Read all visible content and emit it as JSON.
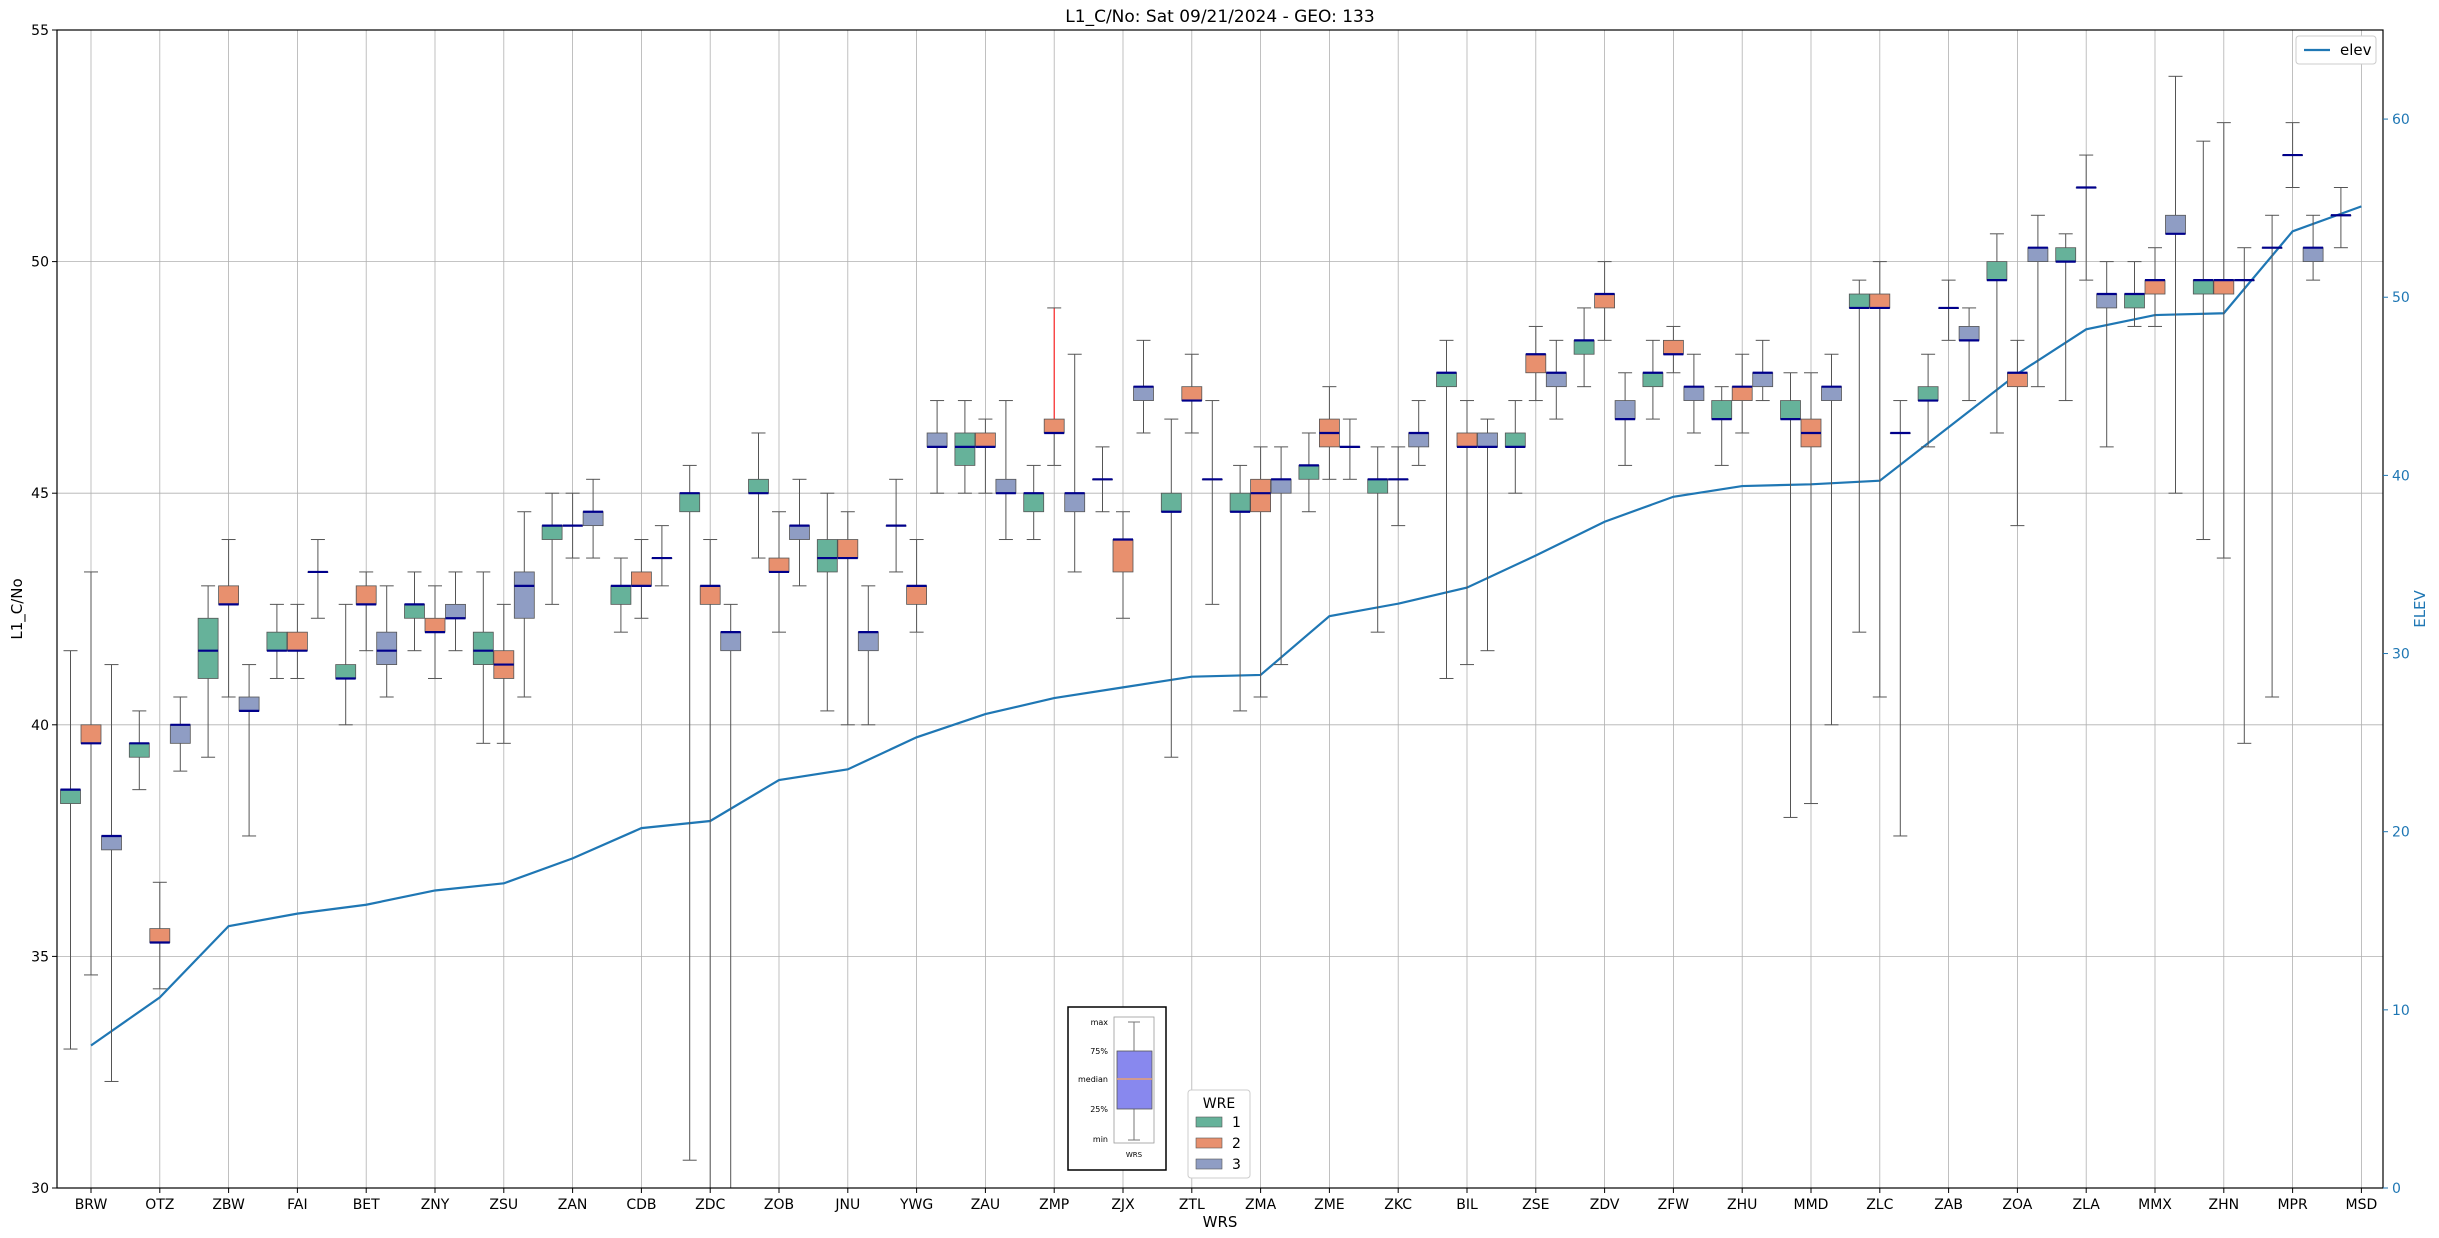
{
  "chart_data": {
    "type": "boxplot",
    "title": "L1_C/No: Sat 09/21/2024 - GEO: 133",
    "xlabel": "WRS",
    "ylabel": "L1_C/No",
    "y2label": "ELEV",
    "ylim": [
      30,
      55
    ],
    "y2lim": [
      0,
      65
    ],
    "yticks": [
      30,
      35,
      40,
      45,
      50,
      55
    ],
    "y2ticks": [
      0,
      10,
      20,
      30,
      40,
      50,
      60
    ],
    "grid": true,
    "categories": [
      "BRW",
      "OTZ",
      "ZBW",
      "FAI",
      "BET",
      "ZNY",
      "ZSU",
      "ZAN",
      "CDB",
      "ZDC",
      "ZOB",
      "JNU",
      "YWG",
      "ZAU",
      "ZMP",
      "ZJX",
      "ZTL",
      "ZMA",
      "ZME",
      "ZKC",
      "BIL",
      "ZSE",
      "ZDV",
      "ZFW",
      "ZHU",
      "MMD",
      "ZLC",
      "ZAB",
      "ZOA",
      "ZLA",
      "MMX",
      "ZHN",
      "MPR",
      "MSD"
    ],
    "wre_colors": {
      "1": "#66b29a",
      "2": "#e8906e",
      "3": "#8f9dc4"
    },
    "elev": {
      "name": "elev",
      "color": "#1f77b4",
      "values": [
        8,
        10.7,
        14.7,
        15.4,
        15.9,
        16.7,
        17.1,
        18.5,
        20.2,
        20.6,
        22.9,
        23.5,
        25.3,
        26.6,
        27.5,
        28.1,
        28.7,
        28.8,
        32.1,
        32.8,
        33.7,
        35.5,
        37.4,
        38.8,
        39.4,
        39.5,
        39.7,
        42.7,
        45.7,
        48.2,
        49,
        49.1,
        53.7,
        55.1
      ]
    },
    "boxes": [
      {
        "wrs": "BRW",
        "wre": 1,
        "min": 33,
        "q1": 38.3,
        "median": 38.6,
        "q3": 38.6,
        "max": 41.6
      },
      {
        "wrs": "BRW",
        "wre": 2,
        "min": 34.6,
        "q1": 39.6,
        "median": 39.6,
        "q3": 40,
        "max": 43.3
      },
      {
        "wrs": "BRW",
        "wre": 3,
        "min": 32.3,
        "q1": 37.3,
        "median": 37.6,
        "q3": 37.6,
        "max": 41.3
      },
      {
        "wrs": "OTZ",
        "wre": 1,
        "min": 38.6,
        "q1": 39.3,
        "median": 39.6,
        "q3": 39.6,
        "max": 40.3
      },
      {
        "wrs": "OTZ",
        "wre": 2,
        "min": 34.3,
        "q1": 35.3,
        "median": 35.3,
        "q3": 35.6,
        "max": 36.6
      },
      {
        "wrs": "OTZ",
        "wre": 3,
        "min": 39,
        "q1": 39.6,
        "median": 40,
        "q3": 40,
        "max": 40.6
      },
      {
        "wrs": "ZBW",
        "wre": 1,
        "min": 39.3,
        "q1": 41,
        "median": 41.6,
        "q3": 42.3,
        "max": 43
      },
      {
        "wrs": "ZBW",
        "wre": 2,
        "min": 40.6,
        "q1": 42.6,
        "median": 42.6,
        "q3": 43,
        "max": 44
      },
      {
        "wrs": "ZBW",
        "wre": 3,
        "min": 37.6,
        "q1": 40.3,
        "median": 40.3,
        "q3": 40.6,
        "max": 41.3
      },
      {
        "wrs": "FAI",
        "wre": 1,
        "min": 41,
        "q1": 41.6,
        "median": 41.6,
        "q3": 42,
        "max": 42.6
      },
      {
        "wrs": "FAI",
        "wre": 2,
        "min": 41,
        "q1": 41.6,
        "median": 41.6,
        "q3": 42,
        "max": 42.6
      },
      {
        "wrs": "FAI",
        "wre": 3,
        "min": 42.3,
        "q1": 43.3,
        "median": 43.3,
        "q3": 43.3,
        "max": 44
      },
      {
        "wrs": "BET",
        "wre": 1,
        "min": 40,
        "q1": 41,
        "median": 41,
        "q3": 41.3,
        "max": 42.6
      },
      {
        "wrs": "BET",
        "wre": 2,
        "min": 41.6,
        "q1": 42.6,
        "median": 42.6,
        "q3": 43,
        "max": 43.3
      },
      {
        "wrs": "BET",
        "wre": 3,
        "min": 40.6,
        "q1": 41.3,
        "median": 41.6,
        "q3": 42,
        "max": 43
      },
      {
        "wrs": "ZNY",
        "wre": 1,
        "min": 41.6,
        "q1": 42.3,
        "median": 42.6,
        "q3": 42.6,
        "max": 43.3
      },
      {
        "wrs": "ZNY",
        "wre": 2,
        "min": 41,
        "q1": 42,
        "median": 42,
        "q3": 42.3,
        "max": 43
      },
      {
        "wrs": "ZNY",
        "wre": 3,
        "min": 41.6,
        "q1": 42.3,
        "median": 42.3,
        "q3": 42.6,
        "max": 43.3
      },
      {
        "wrs": "ZSU",
        "wre": 1,
        "min": 39.6,
        "q1": 41.3,
        "median": 41.6,
        "q3": 42,
        "max": 43.3
      },
      {
        "wrs": "ZSU",
        "wre": 2,
        "min": 39.6,
        "q1": 41,
        "median": 41.3,
        "q3": 41.6,
        "max": 42.6
      },
      {
        "wrs": "ZSU",
        "wre": 3,
        "min": 40.6,
        "q1": 42.3,
        "median": 43,
        "q3": 43.3,
        "max": 44.6
      },
      {
        "wrs": "ZAN",
        "wre": 1,
        "min": 42.6,
        "q1": 44,
        "median": 44.3,
        "q3": 44.3,
        "max": 45
      },
      {
        "wrs": "ZAN",
        "wre": 2,
        "min": 43.6,
        "q1": 44.3,
        "median": 44.3,
        "q3": 44.3,
        "max": 45
      },
      {
        "wrs": "ZAN",
        "wre": 3,
        "min": 43.6,
        "q1": 44.3,
        "median": 44.6,
        "q3": 44.6,
        "max": 45.3
      },
      {
        "wrs": "CDB",
        "wre": 1,
        "min": 42,
        "q1": 42.6,
        "median": 43,
        "q3": 43,
        "max": 43.6
      },
      {
        "wrs": "CDB",
        "wre": 2,
        "min": 42.3,
        "q1": 43,
        "median": 43,
        "q3": 43.3,
        "max": 44
      },
      {
        "wrs": "CDB",
        "wre": 3,
        "min": 43,
        "q1": 43.6,
        "median": 43.6,
        "q3": 43.6,
        "max": 44.3
      },
      {
        "wrs": "ZDC",
        "wre": 1,
        "min": 30.6,
        "q1": 44.6,
        "median": 45,
        "q3": 45,
        "max": 45.6
      },
      {
        "wrs": "ZDC",
        "wre": 2,
        "min": 30,
        "q1": 42.6,
        "median": 43,
        "q3": 43,
        "max": 44
      },
      {
        "wrs": "ZDC",
        "wre": 3,
        "min": 30,
        "q1": 41.6,
        "median": 42,
        "q3": 42,
        "max": 42.6
      },
      {
        "wrs": "ZOB",
        "wre": 1,
        "min": 43.6,
        "q1": 45,
        "median": 45,
        "q3": 45.3,
        "max": 46.3
      },
      {
        "wrs": "ZOB",
        "wre": 2,
        "min": 42,
        "q1": 43.3,
        "median": 43.3,
        "q3": 43.6,
        "max": 44.6
      },
      {
        "wrs": "ZOB",
        "wre": 3,
        "min": 43,
        "q1": 44,
        "median": 44.3,
        "q3": 44.3,
        "max": 45.3
      },
      {
        "wrs": "JNU",
        "wre": 1,
        "min": 40.3,
        "q1": 43.3,
        "median": 43.6,
        "q3": 44,
        "max": 45
      },
      {
        "wrs": "JNU",
        "wre": 2,
        "min": 40,
        "q1": 43.6,
        "median": 43.6,
        "q3": 44,
        "max": 44.6
      },
      {
        "wrs": "JNU",
        "wre": 3,
        "min": 40,
        "q1": 41.6,
        "median": 42,
        "q3": 42,
        "max": 43
      },
      {
        "wrs": "YWG",
        "wre": 1,
        "min": 43.3,
        "q1": 44.3,
        "median": 44.3,
        "q3": 44.3,
        "max": 45.3
      },
      {
        "wrs": "YWG",
        "wre": 2,
        "min": 42,
        "q1": 42.6,
        "median": 43,
        "q3": 43,
        "max": 44
      },
      {
        "wrs": "YWG",
        "wre": 3,
        "min": 45,
        "q1": 46,
        "median": 46,
        "q3": 46.3,
        "max": 47
      },
      {
        "wrs": "ZAU",
        "wre": 1,
        "min": 45,
        "q1": 45.6,
        "median": 46,
        "q3": 46.3,
        "max": 47
      },
      {
        "wrs": "ZAU",
        "wre": 2,
        "min": 45,
        "q1": 46,
        "median": 46,
        "q3": 46.3,
        "max": 46.6
      },
      {
        "wrs": "ZAU",
        "wre": 3,
        "min": 44,
        "q1": 45,
        "median": 45,
        "q3": 45.3,
        "max": 47
      },
      {
        "wrs": "ZMP",
        "wre": 1,
        "min": 44,
        "q1": 44.6,
        "median": 45,
        "q3": 45,
        "max": 45.6
      },
      {
        "wrs": "ZMP",
        "wre": 2,
        "min": 45.6,
        "q1": 46.3,
        "median": 46.3,
        "q3": 46.6,
        "max": 49,
        "whisker_color": "#ff0000"
      },
      {
        "wrs": "ZMP",
        "wre": 3,
        "min": 43.3,
        "q1": 44.6,
        "median": 45,
        "q3": 45,
        "max": 48
      },
      {
        "wrs": "ZJX",
        "wre": 1,
        "min": 44.6,
        "q1": 45.3,
        "median": 45.3,
        "q3": 45.3,
        "max": 46
      },
      {
        "wrs": "ZJX",
        "wre": 2,
        "min": 42.3,
        "q1": 43.3,
        "median": 44,
        "q3": 44,
        "max": 44.6
      },
      {
        "wrs": "ZJX",
        "wre": 3,
        "min": 46.3,
        "q1": 47,
        "median": 47.3,
        "q3": 47.3,
        "max": 48.3
      },
      {
        "wrs": "ZTL",
        "wre": 1,
        "min": 39.3,
        "q1": 44.6,
        "median": 44.6,
        "q3": 45,
        "max": 46.6
      },
      {
        "wrs": "ZTL",
        "wre": 2,
        "min": 46.3,
        "q1": 47,
        "median": 47,
        "q3": 47.3,
        "max": 48
      },
      {
        "wrs": "ZTL",
        "wre": 3,
        "min": 42.6,
        "q1": 45.3,
        "median": 45.3,
        "q3": 45.3,
        "max": 47
      },
      {
        "wrs": "ZMA",
        "wre": 1,
        "min": 40.3,
        "q1": 44.6,
        "median": 44.6,
        "q3": 45,
        "max": 45.6
      },
      {
        "wrs": "ZMA",
        "wre": 2,
        "min": 40.6,
        "q1": 44.6,
        "median": 45,
        "q3": 45.3,
        "max": 46
      },
      {
        "wrs": "ZMA",
        "wre": 3,
        "min": 41.3,
        "q1": 45,
        "median": 45.3,
        "q3": 45.3,
        "max": 46
      },
      {
        "wrs": "ZME",
        "wre": 1,
        "min": 44.6,
        "q1": 45.3,
        "median": 45.6,
        "q3": 45.6,
        "max": 46.3
      },
      {
        "wrs": "ZME",
        "wre": 2,
        "min": 45.3,
        "q1": 46,
        "median": 46.3,
        "q3": 46.6,
        "max": 47.3
      },
      {
        "wrs": "ZME",
        "wre": 3,
        "min": 45.3,
        "q1": 46,
        "median": 46,
        "q3": 46,
        "max": 46.6
      },
      {
        "wrs": "ZKC",
        "wre": 1,
        "min": 42,
        "q1": 45,
        "median": 45.3,
        "q3": 45.3,
        "max": 46
      },
      {
        "wrs": "ZKC",
        "wre": 2,
        "min": 44.3,
        "q1": 45.3,
        "median": 45.3,
        "q3": 45.3,
        "max": 46
      },
      {
        "wrs": "ZKC",
        "wre": 3,
        "min": 45.6,
        "q1": 46,
        "median": 46.3,
        "q3": 46.3,
        "max": 47
      },
      {
        "wrs": "BIL",
        "wre": 1,
        "min": 41,
        "q1": 47.3,
        "median": 47.6,
        "q3": 47.6,
        "max": 48.3
      },
      {
        "wrs": "BIL",
        "wre": 2,
        "min": 41.3,
        "q1": 46,
        "median": 46,
        "q3": 46.3,
        "max": 47
      },
      {
        "wrs": "BIL",
        "wre": 3,
        "min": 41.6,
        "q1": 46,
        "median": 46,
        "q3": 46.3,
        "max": 46.6
      },
      {
        "wrs": "ZSE",
        "wre": 1,
        "min": 45,
        "q1": 46,
        "median": 46,
        "q3": 46.3,
        "max": 47
      },
      {
        "wrs": "ZSE",
        "wre": 2,
        "min": 47,
        "q1": 47.6,
        "median": 48,
        "q3": 48,
        "max": 48.6
      },
      {
        "wrs": "ZSE",
        "wre": 3,
        "min": 46.6,
        "q1": 47.3,
        "median": 47.6,
        "q3": 47.6,
        "max": 48.3
      },
      {
        "wrs": "ZDV",
        "wre": 1,
        "min": 47.3,
        "q1": 48,
        "median": 48.3,
        "q3": 48.3,
        "max": 49
      },
      {
        "wrs": "ZDV",
        "wre": 2,
        "min": 48.3,
        "q1": 49,
        "median": 49.3,
        "q3": 49.3,
        "max": 50
      },
      {
        "wrs": "ZDV",
        "wre": 3,
        "min": 45.6,
        "q1": 46.6,
        "median": 46.6,
        "q3": 47,
        "max": 47.6
      },
      {
        "wrs": "ZFW",
        "wre": 1,
        "min": 46.6,
        "q1": 47.3,
        "median": 47.6,
        "q3": 47.6,
        "max": 48.3
      },
      {
        "wrs": "ZFW",
        "wre": 2,
        "min": 47.6,
        "q1": 48,
        "median": 48,
        "q3": 48.3,
        "max": 48.6
      },
      {
        "wrs": "ZFW",
        "wre": 3,
        "min": 46.3,
        "q1": 47,
        "median": 47.3,
        "q3": 47.3,
        "max": 48
      },
      {
        "wrs": "ZHU",
        "wre": 1,
        "min": 45.6,
        "q1": 46.6,
        "median": 46.6,
        "q3": 47,
        "max": 47.3
      },
      {
        "wrs": "ZHU",
        "wre": 2,
        "min": 46.3,
        "q1": 47,
        "median": 47.3,
        "q3": 47.3,
        "max": 48
      },
      {
        "wrs": "ZHU",
        "wre": 3,
        "min": 47,
        "q1": 47.3,
        "median": 47.6,
        "q3": 47.6,
        "max": 48.3
      },
      {
        "wrs": "MMD",
        "wre": 1,
        "min": 38,
        "q1": 46.6,
        "median": 46.6,
        "q3": 47,
        "max": 47.6
      },
      {
        "wrs": "MMD",
        "wre": 2,
        "min": 38.3,
        "q1": 46,
        "median": 46.3,
        "q3": 46.6,
        "max": 47.6
      },
      {
        "wrs": "MMD",
        "wre": 3,
        "min": 40,
        "q1": 47,
        "median": 47.3,
        "q3": 47.3,
        "max": 48
      },
      {
        "wrs": "ZLC",
        "wre": 1,
        "min": 42,
        "q1": 49,
        "median": 49,
        "q3": 49.3,
        "max": 49.6
      },
      {
        "wrs": "ZLC",
        "wre": 2,
        "min": 40.6,
        "q1": 49,
        "median": 49,
        "q3": 49.3,
        "max": 50
      },
      {
        "wrs": "ZLC",
        "wre": 3,
        "min": 37.6,
        "q1": 46.3,
        "median": 46.3,
        "q3": 46.3,
        "max": 47
      },
      {
        "wrs": "ZAB",
        "wre": 1,
        "min": 46,
        "q1": 47,
        "median": 47,
        "q3": 47.3,
        "max": 48
      },
      {
        "wrs": "ZAB",
        "wre": 2,
        "min": 48.3,
        "q1": 49,
        "median": 49,
        "q3": 49,
        "max": 49.6
      },
      {
        "wrs": "ZAB",
        "wre": 3,
        "min": 47,
        "q1": 48.3,
        "median": 48.3,
        "q3": 48.6,
        "max": 49
      },
      {
        "wrs": "ZOA",
        "wre": 1,
        "min": 46.3,
        "q1": 49.6,
        "median": 49.6,
        "q3": 50,
        "max": 50.6
      },
      {
        "wrs": "ZOA",
        "wre": 2,
        "min": 44.3,
        "q1": 47.3,
        "median": 47.6,
        "q3": 47.6,
        "max": 48.3
      },
      {
        "wrs": "ZOA",
        "wre": 3,
        "min": 47.3,
        "q1": 50,
        "median": 50.3,
        "q3": 50.3,
        "max": 51
      },
      {
        "wrs": "ZLA",
        "wre": 1,
        "min": 47,
        "q1": 50,
        "median": 50,
        "q3": 50.3,
        "max": 50.6
      },
      {
        "wrs": "ZLA",
        "wre": 2,
        "min": 49.6,
        "q1": 51.6,
        "median": 51.6,
        "q3": 51.6,
        "max": 52.3
      },
      {
        "wrs": "ZLA",
        "wre": 3,
        "min": 46,
        "q1": 49,
        "median": 49.3,
        "q3": 49.3,
        "max": 50
      },
      {
        "wrs": "MMX",
        "wre": 1,
        "min": 48.6,
        "q1": 49,
        "median": 49.3,
        "q3": 49.3,
        "max": 50
      },
      {
        "wrs": "MMX",
        "wre": 2,
        "min": 48.6,
        "q1": 49.3,
        "median": 49.6,
        "q3": 49.6,
        "max": 50.3
      },
      {
        "wrs": "MMX",
        "wre": 3,
        "min": 45,
        "q1": 50.6,
        "median": 50.6,
        "q3": 51,
        "max": 54
      },
      {
        "wrs": "ZHN",
        "wre": 1,
        "min": 44,
        "q1": 49.3,
        "median": 49.6,
        "q3": 49.6,
        "max": 52.6
      },
      {
        "wrs": "ZHN",
        "wre": 2,
        "min": 43.6,
        "q1": 49.3,
        "median": 49.6,
        "q3": 49.6,
        "max": 53
      },
      {
        "wrs": "ZHN",
        "wre": 3,
        "min": 39.6,
        "q1": 49.6,
        "median": 49.6,
        "q3": 49.6,
        "max": 50.3
      },
      {
        "wrs": "MPR",
        "wre": 1,
        "min": 40.6,
        "q1": 50.3,
        "median": 50.3,
        "q3": 50.3,
        "max": 51
      },
      {
        "wrs": "MPR",
        "wre": 2,
        "min": 51.6,
        "q1": 52.3,
        "median": 52.3,
        "q3": 52.3,
        "max": 53
      },
      {
        "wrs": "MPR",
        "wre": 3,
        "min": 49.6,
        "q1": 50,
        "median": 50.3,
        "q3": 50.3,
        "max": 51
      },
      {
        "wrs": "MSD",
        "wre": 1,
        "min": 50.3,
        "q1": 51,
        "median": 51,
        "q3": 51,
        "max": 51.6
      }
    ],
    "box_legend": {
      "title": "WRE",
      "entries": [
        "1",
        "2",
        "3"
      ]
    },
    "line_legend": {
      "entries": [
        "elev"
      ],
      "placement": "top-right"
    },
    "inset_key": {
      "labels": [
        "max",
        "75%",
        "median",
        "25%",
        "min"
      ],
      "caption": "WRS"
    }
  }
}
